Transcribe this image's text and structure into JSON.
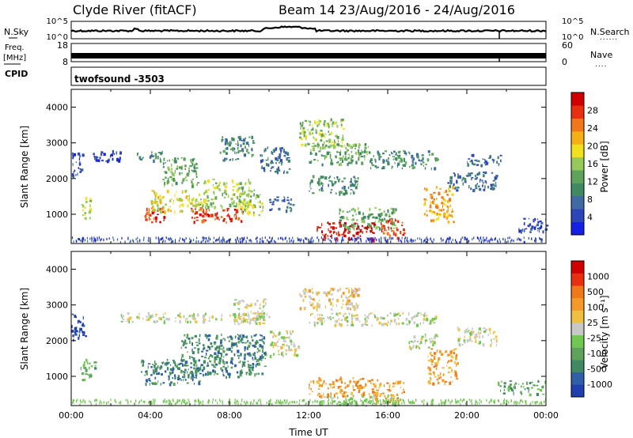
{
  "header": {
    "station": "Clyde River (fitACF)",
    "beam_info": "Beam 14  23/Aug/2016 - 24/Aug/2016"
  },
  "chart_data": [
    {
      "type": "line",
      "panel": "noise",
      "left_label": "N.Sky",
      "right_label": "N.Search",
      "left_ticks": [
        "10^5",
        "10^0"
      ],
      "right_ticks": [
        "10^5",
        "10^0"
      ]
    },
    {
      "type": "line",
      "panel": "frequency-nave",
      "left_label_1": "Freq.",
      "left_label_2": "[MHz]",
      "right_label": "Nave",
      "left_ticks": [
        "18",
        "8"
      ],
      "right_ticks": [
        "60",
        "0"
      ]
    },
    {
      "type": "table",
      "panel": "cpid",
      "label": "CPID",
      "program": "twofsound -3503"
    },
    {
      "type": "heatmap",
      "panel": "power",
      "ylabel": "Slant Range [km]",
      "yticks": [
        "1000",
        "2000",
        "3000",
        "4000"
      ],
      "ylim": [
        180,
        4500
      ],
      "xlim_hours": [
        0,
        24
      ],
      "colorbar_label": "Power [dB]",
      "colorbar_ticks": [
        "4",
        "8",
        "12",
        "16",
        "20",
        "24",
        "28"
      ],
      "colors": [
        "#1520e6",
        "#2c45b8",
        "#3f6aa2",
        "#3f8a62",
        "#5ea35a",
        "#95c95a",
        "#f0e020",
        "#f5b015",
        "#f07818",
        "#e83010",
        "#d00000"
      ],
      "regions": [
        {
          "t": [
            0.0,
            0.6
          ],
          "r": [
            2100,
            2750
          ],
          "v": 1
        },
        {
          "t": [
            0.5,
            1.0
          ],
          "r": [
            900,
            1500
          ],
          "v": 5
        },
        {
          "t": [
            1.0,
            2.5
          ],
          "r": [
            2500,
            2800
          ],
          "v": 1
        },
        {
          "t": [
            3.3,
            4.7
          ],
          "r": [
            2500,
            2800
          ],
          "v": 3
        },
        {
          "t": [
            3.6,
            4.7
          ],
          "r": [
            780,
            1200
          ],
          "v": 9
        },
        {
          "t": [
            4.0,
            6.5
          ],
          "r": [
            1100,
            1700
          ],
          "v": 6
        },
        {
          "t": [
            4.6,
            6.4
          ],
          "r": [
            1800,
            2600
          ],
          "v": 4
        },
        {
          "t": [
            6.0,
            8.7
          ],
          "r": [
            800,
            1200
          ],
          "v": 9
        },
        {
          "t": [
            6.5,
            9.0
          ],
          "r": [
            1200,
            2000
          ],
          "v": 5
        },
        {
          "t": [
            7.5,
            9.2
          ],
          "r": [
            2500,
            3200
          ],
          "v": 3
        },
        {
          "t": [
            8.5,
            9.7
          ],
          "r": [
            1000,
            1700
          ],
          "v": 5
        },
        {
          "t": [
            9.5,
            11.0
          ],
          "r": [
            2200,
            2900
          ],
          "v": 2
        },
        {
          "t": [
            10.0,
            11.2
          ],
          "r": [
            1100,
            1500
          ],
          "v": 2
        },
        {
          "t": [
            11.5,
            13.8
          ],
          "r": [
            2900,
            3700
          ],
          "v": 5
        },
        {
          "t": [
            12.0,
            15.0
          ],
          "r": [
            2400,
            3000
          ],
          "v": 4
        },
        {
          "t": [
            12.0,
            14.5
          ],
          "r": [
            1600,
            2100
          ],
          "v": 3
        },
        {
          "t": [
            12.4,
            15.3
          ],
          "r": [
            300,
            800
          ],
          "v": 10
        },
        {
          "t": [
            13.5,
            16.4
          ],
          "r": [
            600,
            1200
          ],
          "v": 4
        },
        {
          "t": [
            15.6,
            16.8
          ],
          "r": [
            350,
            900
          ],
          "v": 9
        },
        {
          "t": [
            15.0,
            18.5
          ],
          "r": [
            2300,
            2800
          ],
          "v": 3
        },
        {
          "t": [
            17.8,
            19.3
          ],
          "r": [
            800,
            1800
          ],
          "v": 7
        },
        {
          "t": [
            19.0,
            21.5
          ],
          "r": [
            1700,
            2200
          ],
          "v": 2
        },
        {
          "t": [
            20.0,
            21.7
          ],
          "r": [
            2400,
            2700
          ],
          "v": 2
        },
        {
          "t": [
            22.5,
            24.0
          ],
          "r": [
            500,
            900
          ],
          "v": 1
        }
      ]
    },
    {
      "type": "heatmap",
      "panel": "velocity",
      "ylabel": "Slant Range [km]",
      "yticks": [
        "1000",
        "2000",
        "3000",
        "4000"
      ],
      "ylim": [
        180,
        4500
      ],
      "xticks": [
        "00:00",
        "04:00",
        "08:00",
        "12:00",
        "16:00",
        "20:00",
        "00:00"
      ],
      "xlabel": "Time UT",
      "colorbar_label": "Velocity [m s⁻¹]",
      "colorbar_ticks": [
        "1000",
        "500",
        "100",
        "25",
        "-25",
        "-100",
        "-500",
        "-1000"
      ],
      "colors": [
        "#2040b0",
        "#2f5fa8",
        "#3f8a62",
        "#5ea35a",
        "#70c850",
        "#c8c8c8",
        "#f0c040",
        "#f59a2a",
        "#f07818",
        "#e83010",
        "#d00000"
      ],
      "regions": [
        {
          "t": [
            0.0,
            0.7
          ],
          "r": [
            2050,
            2800
          ],
          "v": 0
        },
        {
          "t": [
            0.4,
            1.2
          ],
          "r": [
            900,
            1500
          ],
          "v": 3
        },
        {
          "t": [
            2.5,
            10.0
          ],
          "r": [
            2550,
            2800
          ],
          "v": 5
        },
        {
          "t": [
            3.5,
            6.5
          ],
          "r": [
            800,
            1500
          ],
          "v": 2
        },
        {
          "t": [
            5.5,
            9.8
          ],
          "r": [
            1000,
            2200
          ],
          "v": 2
        },
        {
          "t": [
            8.2,
            9.8
          ],
          "r": [
            2500,
            3200
          ],
          "v": 5
        },
        {
          "t": [
            10.0,
            11.5
          ],
          "r": [
            1600,
            2300
          ],
          "v": 5
        },
        {
          "t": [
            11.5,
            14.5
          ],
          "r": [
            2900,
            3500
          ],
          "v": 6
        },
        {
          "t": [
            12.0,
            18.5
          ],
          "r": [
            2450,
            2800
          ],
          "v": 5
        },
        {
          "t": [
            12.5,
            16.5
          ],
          "r": [
            200,
            500
          ],
          "v": 4
        },
        {
          "t": [
            12.0,
            15.5
          ],
          "r": [
            450,
            1000
          ],
          "v": 7
        },
        {
          "t": [
            15.2,
            16.8
          ],
          "r": [
            300,
            900
          ],
          "v": 7
        },
        {
          "t": [
            17.0,
            18.5
          ],
          "r": [
            1800,
            2200
          ],
          "v": 5
        },
        {
          "t": [
            18.0,
            19.5
          ],
          "r": [
            800,
            1800
          ],
          "v": 7
        },
        {
          "t": [
            19.5,
            21.5
          ],
          "r": [
            1900,
            2400
          ],
          "v": 5
        },
        {
          "t": [
            21.5,
            24.0
          ],
          "r": [
            500,
            900
          ],
          "v": 3
        }
      ]
    }
  ]
}
